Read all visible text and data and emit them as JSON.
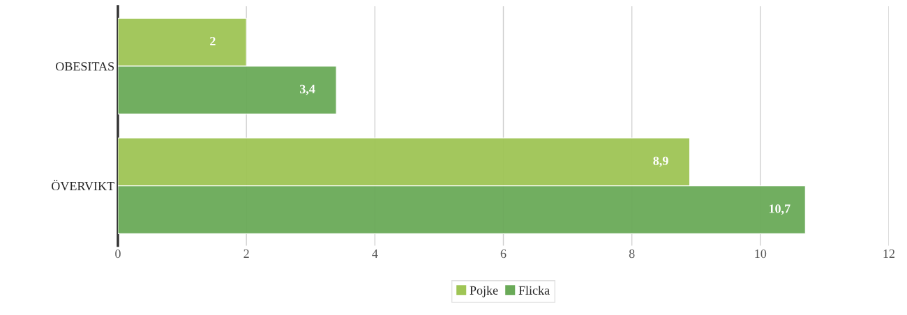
{
  "chart_data": {
    "type": "bar",
    "orientation": "horizontal",
    "categories": [
      "OBESITAS",
      "ÖVERVIKT"
    ],
    "series": [
      {
        "name": "Pojke",
        "color": "#9fc555",
        "values": [
          2,
          8.9
        ],
        "value_labels": [
          "2",
          "8,9"
        ]
      },
      {
        "name": "Flicka",
        "color": "#6aaa58",
        "values": [
          3.4,
          10.7
        ],
        "value_labels": [
          "3,4",
          "10,7"
        ]
      }
    ],
    "xlim": [
      0,
      12
    ],
    "xticks": [
      0,
      2,
      4,
      6,
      8,
      10,
      12
    ],
    "grid": "x",
    "legend": "bottom"
  }
}
